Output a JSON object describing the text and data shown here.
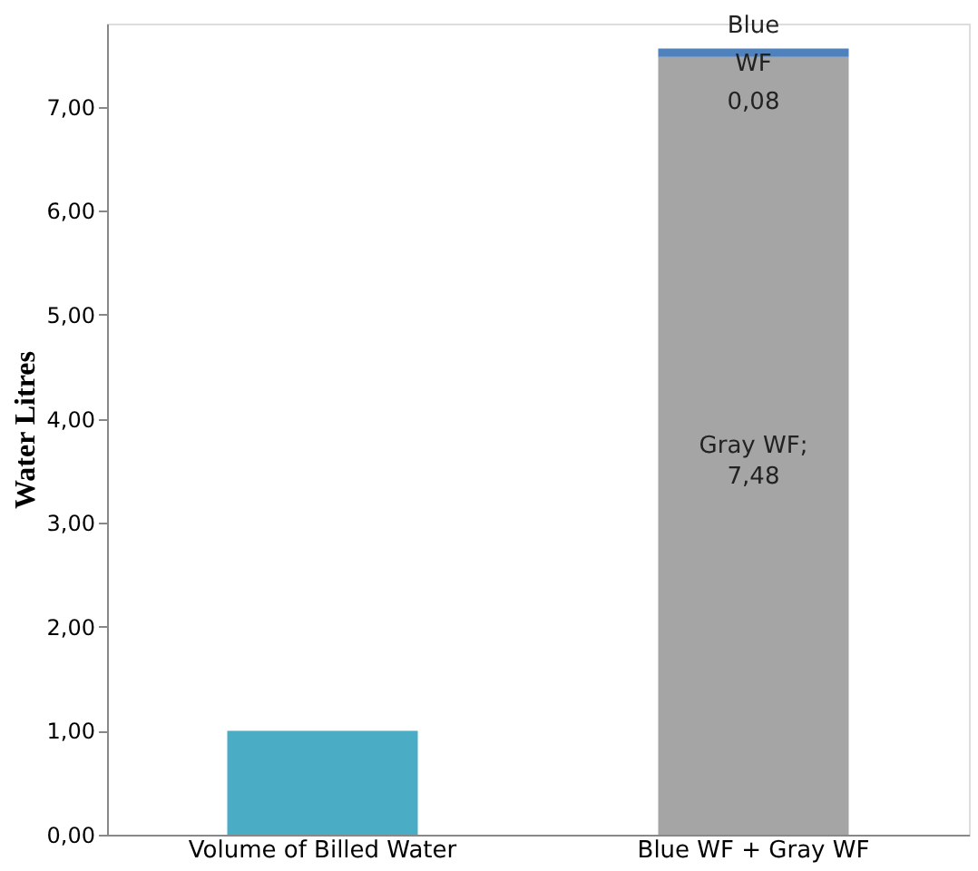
{
  "chart_data": {
    "type": "bar",
    "stacked": true,
    "ylabel": "Water Litres",
    "categories": [
      "Volume of Billed Water",
      "Blue WF + Gray WF"
    ],
    "series": [
      {
        "color": "#4bacc6",
        "values": [
          1.0,
          null
        ]
      },
      {
        "color": "#a5a5a5",
        "values": [
          null,
          7.48
        ],
        "value_labels": [
          null,
          "Gray WF;\n\n7,48"
        ]
      },
      {
        "color": "#4f81bd",
        "values": [
          null,
          0.08
        ],
        "value_labels": [
          null,
          "Blue\nWF\n0,08"
        ]
      }
    ],
    "ylim": [
      0,
      7.8
    ],
    "yticks": [
      {
        "value": 0,
        "label": "0,00"
      },
      {
        "value": 1,
        "label": "1,00"
      },
      {
        "value": 2,
        "label": "2,00"
      },
      {
        "value": 3,
        "label": "3,00"
      },
      {
        "value": 4,
        "label": "4,00"
      },
      {
        "value": 5,
        "label": "5,00"
      },
      {
        "value": 6,
        "label": "6,00"
      },
      {
        "value": 7,
        "label": "7,00"
      }
    ],
    "grid": false
  }
}
